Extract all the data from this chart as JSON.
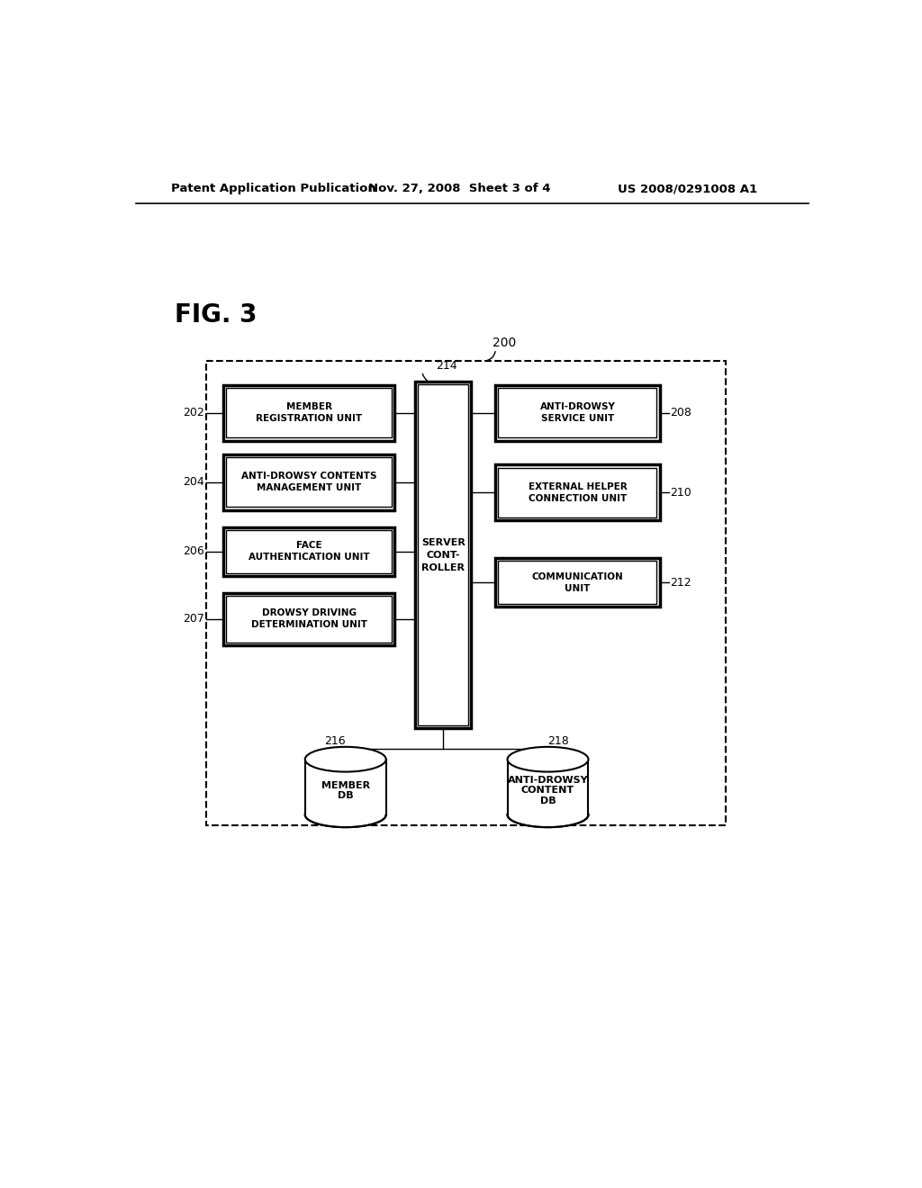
{
  "bg_color": "#ffffff",
  "header_left": "Patent Application Publication",
  "header_mid": "Nov. 27, 2008  Sheet 3 of 4",
  "header_right": "US 2008/0291008 A1",
  "fig_label": "FIG. 3",
  "outer_box_label": "200",
  "server_label": "214",
  "left_boxes": [
    {
      "label": "MEMBER\nREGISTRATION UNIT",
      "ref": "202"
    },
    {
      "label": "ANTI-DROWSY CONTENTS\nMANAGEMENT UNIT",
      "ref": "204"
    },
    {
      "label": "FACE\nAUTHENTICATION UNIT",
      "ref": "206"
    },
    {
      "label": "DROWSY DRIVING\nDETERMINATION UNIT",
      "ref": "207"
    }
  ],
  "right_boxes": [
    {
      "label": "ANTI-DROWSY\nSERVICE UNIT",
      "ref": "208"
    },
    {
      "label": "EXTERNAL HELPER\nCONNECTION UNIT",
      "ref": "210"
    },
    {
      "label": "COMMUNICATION\nUNIT",
      "ref": "212"
    }
  ],
  "server_box_label": "SERVER\nCONT-\nROLLER",
  "db_left": {
    "label": "MEMBER\nDB",
    "ref": "216"
  },
  "db_right": {
    "label": "ANTI-DROWSY\nCONTENT\nDB",
    "ref": "218"
  }
}
